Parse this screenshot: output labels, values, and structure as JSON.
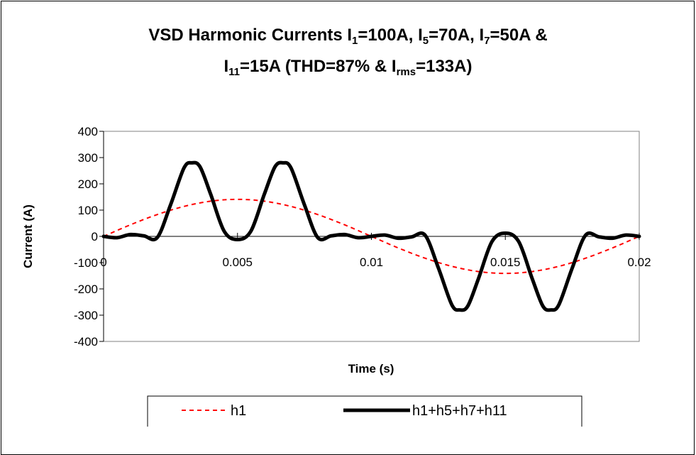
{
  "chart_data": {
    "type": "line",
    "title": {
      "line1": [
        {
          "t": "VSD Harmonic Currents I"
        },
        {
          "sub": "1"
        },
        {
          "t": "=100A, I"
        },
        {
          "sub": "5"
        },
        {
          "t": "=70A, I"
        },
        {
          "sub": "7"
        },
        {
          "t": "=50A &"
        }
      ],
      "line2": [
        {
          "t": "I"
        },
        {
          "sub": "11"
        },
        {
          "t": "=15A (THD=87% & I"
        },
        {
          "sub": "rms"
        },
        {
          "t": "=133A)"
        }
      ]
    },
    "xlabel": "Time (s)",
    "ylabel": "Current (A)",
    "xlim": [
      0,
      0.02
    ],
    "ylim": [
      -400,
      400
    ],
    "x_ticks": [
      "0",
      "0.005",
      "0.01",
      "0.015",
      "0.02"
    ],
    "x_tick_values": [
      0,
      0.005,
      0.01,
      0.015,
      0.02
    ],
    "y_ticks": [
      "400",
      "300",
      "200",
      "100",
      "0",
      "-100",
      "-200",
      "-300",
      "-400"
    ],
    "y_tick_values": [
      400,
      300,
      200,
      100,
      0,
      -100,
      -200,
      -300,
      -400
    ],
    "grid": false,
    "legend_position": "bottom",
    "series": [
      {
        "name": "h1",
        "style": "dashed",
        "color": "#ff0000",
        "x": [
          0,
          0.001,
          0.002,
          0.003,
          0.004,
          0.005,
          0.006,
          0.007,
          0.008,
          0.009,
          0.01,
          0.011,
          0.012,
          0.013,
          0.014,
          0.015,
          0.016,
          0.017,
          0.018,
          0.019,
          0.02
        ],
        "y": [
          0,
          44,
          83,
          114,
          134,
          141,
          134,
          114,
          83,
          44,
          0,
          -44,
          -83,
          -114,
          -134,
          -141,
          -134,
          -114,
          -83,
          -44,
          0
        ]
      },
      {
        "name": "h1+h5+h7+h11",
        "style": "solid",
        "color": "#000000",
        "x": [
          0,
          0.0005,
          0.001,
          0.0015,
          0.002,
          0.0025,
          0.003,
          0.0033,
          0.0036,
          0.004,
          0.0045,
          0.005,
          0.0055,
          0.006,
          0.0064,
          0.0067,
          0.007,
          0.0075,
          0.008,
          0.0085,
          0.009,
          0.0095,
          0.01,
          0.0105,
          0.011,
          0.0115,
          0.012,
          0.0125,
          0.013,
          0.0133,
          0.0136,
          0.014,
          0.0145,
          0.015,
          0.0155,
          0.016,
          0.0164,
          0.0167,
          0.017,
          0.0175,
          0.018,
          0.0185,
          0.019,
          0.0195,
          0.02
        ],
        "y": [
          0,
          -5,
          7,
          2,
          -5,
          120,
          260,
          280,
          265,
          160,
          20,
          -12,
          20,
          160,
          265,
          280,
          260,
          120,
          -5,
          2,
          7,
          -5,
          0,
          5,
          -7,
          -2,
          5,
          -120,
          -260,
          -280,
          -265,
          -160,
          -20,
          12,
          -20,
          -160,
          -265,
          -280,
          -260,
          -120,
          5,
          -2,
          -7,
          5,
          0
        ]
      }
    ]
  }
}
